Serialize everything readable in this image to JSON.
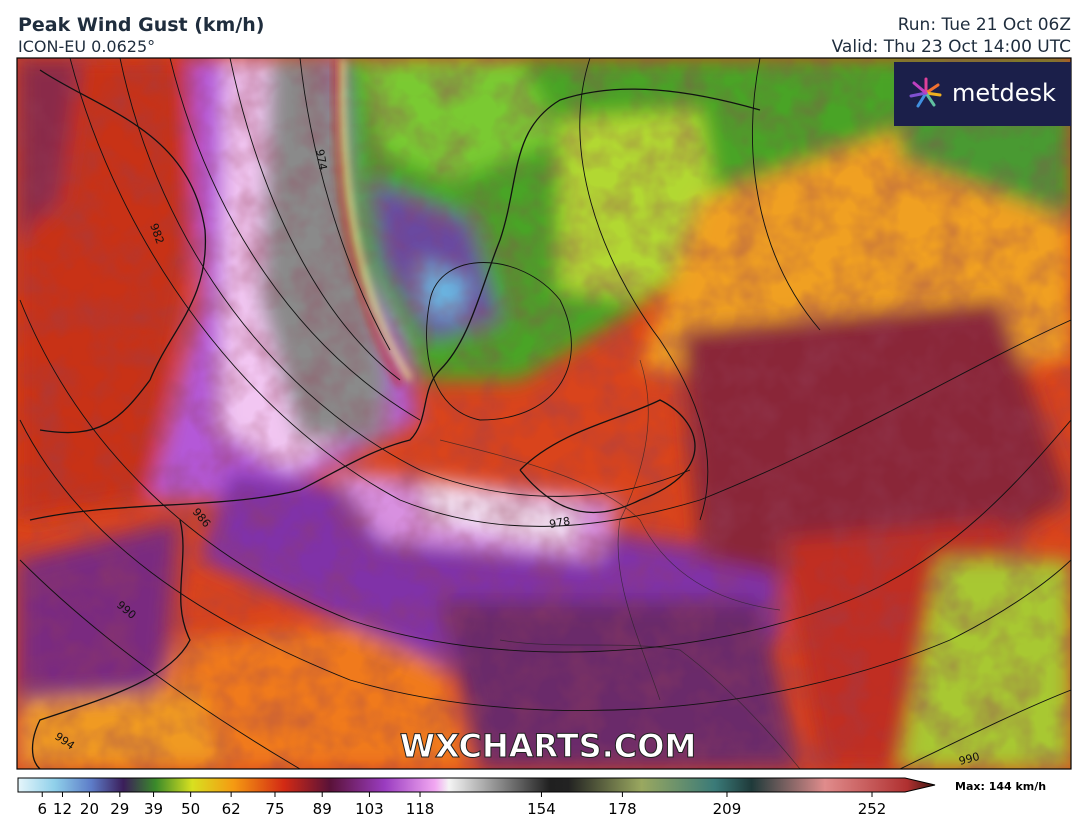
{
  "header": {
    "title": "Peak Wind Gust (km/h)",
    "model": "ICON-EU 0.0625°",
    "run": "Run: Tue 21 Oct 06Z",
    "valid": "Valid: Thu 23 Oct 14:00 UTC"
  },
  "logo": "metdesk",
  "watermark": "WXCHARTS.COM",
  "isobar_labels": [
    "974",
    "982",
    "986",
    "990",
    "978",
    "994",
    "990"
  ],
  "colorbar": {
    "xlim": [
      0,
      260
    ],
    "xticks": [
      6,
      12,
      20,
      29,
      39,
      50,
      62,
      75,
      89,
      103,
      118,
      154,
      178,
      209,
      252
    ],
    "max_label": "Max: 144 km/h"
  }
}
